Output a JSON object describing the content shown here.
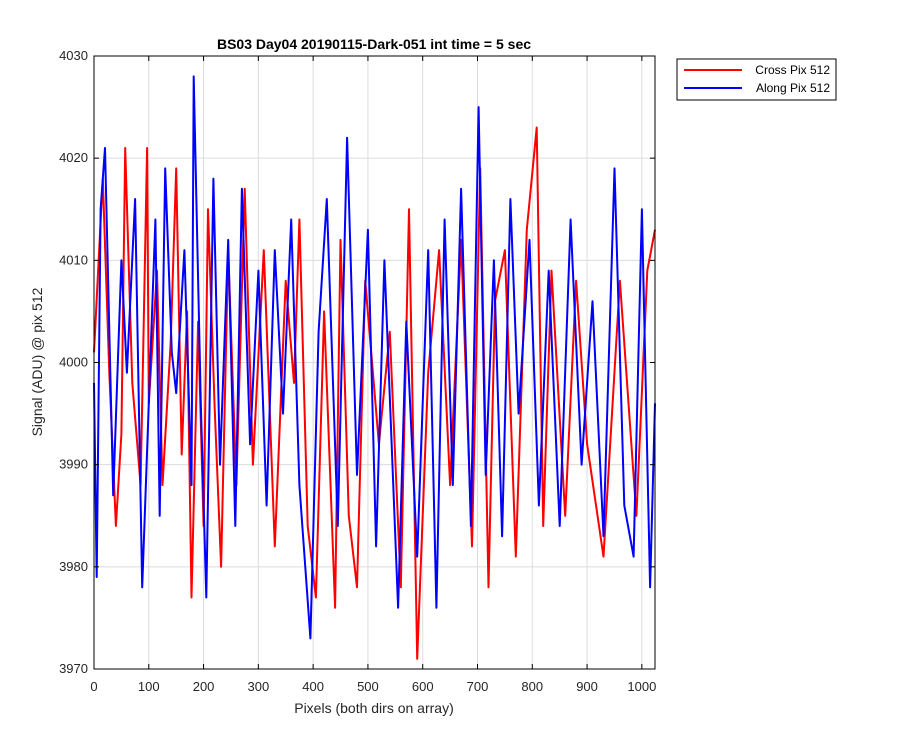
{
  "chart_data": {
    "type": "line",
    "title": "BS03 Day04 20190115-Dark-051 int time = 5 sec",
    "xlabel": "Pixels (both dirs on array)",
    "ylabel": "Signal (ADU) @ pix 512",
    "xlim": [
      0,
      1024
    ],
    "ylim": [
      3970,
      4030
    ],
    "xticks": [
      0,
      100,
      200,
      300,
      400,
      500,
      600,
      700,
      800,
      900,
      1000
    ],
    "yticks": [
      3970,
      3980,
      3990,
      4000,
      4010,
      4020,
      4030
    ],
    "grid": true,
    "legend_position": "outside-top-right",
    "series": [
      {
        "name": "Cross Pix 512",
        "color": "#ff0000",
        "x": [
          0,
          16,
          28,
          40,
          50,
          57,
          70,
          85,
          97,
          100,
          115,
          125,
          140,
          150,
          160,
          170,
          178,
          190,
          200,
          208,
          220,
          232,
          245,
          260,
          275,
          290,
          310,
          330,
          350,
          365,
          375,
          390,
          405,
          420,
          440,
          450,
          465,
          480,
          495,
          520,
          540,
          560,
          575,
          590,
          610,
          630,
          650,
          670,
          690,
          705,
          720,
          732,
          750,
          770,
          790,
          808,
          820,
          835,
          860,
          880,
          900,
          930,
          960,
          990,
          1010,
          1024
        ],
        "y": [
          4001,
          4018,
          3999,
          3984,
          3993,
          4021,
          3998,
          3988,
          4021,
          3996,
          4009,
          3988,
          4002,
          4019,
          3991,
          4005,
          3977,
          4004,
          3984,
          4015,
          3996,
          3980,
          4011,
          3988,
          4017,
          3990,
          4011,
          3982,
          4008,
          3998,
          4014,
          3984,
          3977,
          4005,
          3976,
          4012,
          3985,
          3978,
          4008,
          3992,
          4003,
          3978,
          4015,
          3971,
          3999,
          4011,
          3988,
          4012,
          3982,
          4019,
          3978,
          4006,
          4011,
          3981,
          4013,
          4023,
          3984,
          4009,
          3985,
          4008,
          3992,
          3981,
          4008,
          3985,
          4009,
          4013
        ]
      },
      {
        "name": "Along Pix 512",
        "color": "#0000ff",
        "x": [
          0,
          5,
          12,
          20,
          35,
          50,
          60,
          75,
          88,
          100,
          112,
          120,
          130,
          142,
          150,
          165,
          178,
          182,
          195,
          205,
          218,
          230,
          245,
          258,
          270,
          285,
          300,
          315,
          330,
          345,
          360,
          375,
          395,
          410,
          425,
          445,
          462,
          480,
          500,
          515,
          530,
          555,
          570,
          590,
          610,
          625,
          640,
          655,
          670,
          688,
          702,
          715,
          730,
          745,
          760,
          775,
          795,
          812,
          830,
          850,
          870,
          890,
          910,
          930,
          950,
          968,
          985,
          1000,
          1015,
          1024
        ],
        "y": [
          3998,
          3979,
          4015,
          4021,
          3987,
          4010,
          3999,
          4016,
          3978,
          3996,
          4014,
          3985,
          4019,
          4001,
          3997,
          4011,
          3988,
          4028,
          3996,
          3977,
          4018,
          3990,
          4012,
          3984,
          4017,
          3992,
          4009,
          3986,
          4011,
          3995,
          4014,
          3988,
          3973,
          4003,
          4016,
          3984,
          4022,
          3989,
          4013,
          3982,
          4010,
          3976,
          4004,
          3981,
          4011,
          3976,
          4014,
          3988,
          4017,
          3984,
          4025,
          3989,
          4010,
          3983,
          4016,
          3995,
          4012,
          3986,
          4009,
          3984,
          4014,
          3990,
          4006,
          3983,
          4019,
          3986,
          3981,
          4015,
          3978,
          3996
        ]
      }
    ]
  }
}
